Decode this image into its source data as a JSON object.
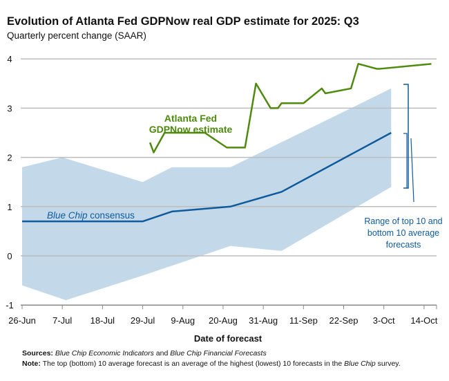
{
  "title": "Evolution of Atlanta Fed GDPNow real GDP estimate for 2025: Q3",
  "subtitle": "Quarterly percent change (SAAR)",
  "colors": {
    "gdpnow": "#4d8a0d",
    "bluechip": "#0e5a9c",
    "band": "#c3d9e9",
    "grid": "#bdbdbd",
    "annotation": "#0e5a9c"
  },
  "chart_data": {
    "type": "line",
    "xlabel": "Date of forecast",
    "ylabel": "",
    "ylim": [
      -1,
      4
    ],
    "yticks": [
      "-1",
      "0",
      "1",
      "2",
      "3",
      "4"
    ],
    "xlim": [
      "2025-06-26",
      "2025-10-17"
    ],
    "xticks": [
      {
        "date": "2025-06-26",
        "label": "26-Jun"
      },
      {
        "date": "2025-07-07",
        "label": "7-Jul"
      },
      {
        "date": "2025-07-18",
        "label": "18-Jul"
      },
      {
        "date": "2025-07-29",
        "label": "29-Jul"
      },
      {
        "date": "2025-08-09",
        "label": "9-Aug"
      },
      {
        "date": "2025-08-20",
        "label": "20-Aug"
      },
      {
        "date": "2025-08-31",
        "label": "31-Aug"
      },
      {
        "date": "2025-09-11",
        "label": "11-Sep"
      },
      {
        "date": "2025-09-22",
        "label": "22-Sep"
      },
      {
        "date": "2025-10-03",
        "label": "3-Oct"
      },
      {
        "date": "2025-10-14",
        "label": "14-Oct"
      }
    ],
    "grid": true,
    "series": [
      {
        "name": "Atlanta Fed GDPNow estimate",
        "points": [
          [
            "2025-07-31",
            2.3
          ],
          [
            "2025-08-01",
            2.1
          ],
          [
            "2025-08-04",
            2.5
          ],
          [
            "2025-08-15",
            2.5
          ],
          [
            "2025-08-21",
            2.2
          ],
          [
            "2025-08-26",
            2.2
          ],
          [
            "2025-08-29",
            3.5
          ],
          [
            "2025-09-02",
            3.0
          ],
          [
            "2025-09-04",
            3.0
          ],
          [
            "2025-09-05",
            3.1
          ],
          [
            "2025-09-11",
            3.1
          ],
          [
            "2025-09-16",
            3.4
          ],
          [
            "2025-09-17",
            3.3
          ],
          [
            "2025-09-24",
            3.4
          ],
          [
            "2025-09-26",
            3.9
          ],
          [
            "2025-10-01",
            3.8
          ],
          [
            "2025-10-02",
            3.8
          ],
          [
            "2025-10-16",
            3.9
          ]
        ]
      },
      {
        "name": "Blue Chip consensus",
        "points": [
          [
            "2025-06-26",
            0.7
          ],
          [
            "2025-07-29",
            0.7
          ],
          [
            "2025-08-06",
            0.9
          ],
          [
            "2025-08-22",
            1.0
          ],
          [
            "2025-09-05",
            1.3
          ],
          [
            "2025-10-05",
            2.5
          ]
        ]
      }
    ],
    "band": {
      "name": "Range of top 10 and bottom 10 average forecasts",
      "upper": [
        [
          "2025-06-26",
          1.8
        ],
        [
          "2025-07-07",
          2.0
        ],
        [
          "2025-07-29",
          1.5
        ],
        [
          "2025-08-06",
          1.8
        ],
        [
          "2025-08-22",
          1.8
        ],
        [
          "2025-10-05",
          3.4
        ]
      ],
      "lower": [
        [
          "2025-06-26",
          -0.6
        ],
        [
          "2025-07-08",
          -0.9
        ],
        [
          "2025-07-29",
          -0.4
        ],
        [
          "2025-08-22",
          0.2
        ],
        [
          "2025-09-05",
          0.1
        ],
        [
          "2025-10-05",
          1.4
        ]
      ]
    },
    "annotations": {
      "gdpnow_line1": "Atlanta Fed",
      "gdpnow_line2": "GDPNow estimate",
      "bluechip_italic": "Blue Chip",
      "bluechip_rest": " consensus",
      "band_line1": "Range of top 10 and",
      "band_line2": "bottom 10 average",
      "band_line3": "forecasts"
    }
  },
  "footer": {
    "sources_label": "Sources:",
    "sources_text_1": "Blue Chip Economic Indicators",
    "sources_text_2": " and ",
    "sources_text_3": "Blue Chip Financial Forecasts",
    "note_label": "Note:",
    "note_text_1": " The top (bottom) 10 average forecast is an average of the highest (lowest) 10 forecasts in the ",
    "note_text_2": "Blue Chip",
    "note_text_3": " survey."
  }
}
